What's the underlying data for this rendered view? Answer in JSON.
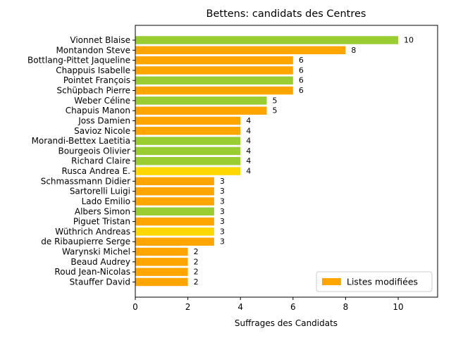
{
  "chart_data": {
    "type": "bar",
    "orientation": "horizontal",
    "title": "Bettens: candidats des Centres",
    "xlabel": "Suffrages des Candidats",
    "ylabel": "",
    "xlim": [
      0,
      11.5
    ],
    "xticks": [
      0,
      2,
      4,
      6,
      8,
      10
    ],
    "grid": false,
    "legend": {
      "label": "Listes modifiées",
      "color": "#ffa500",
      "placement": "lower-right"
    },
    "categories": [
      "Vionnet Blaise",
      "Montandon Steve",
      "Bottlang-Pittet Jaqueline",
      "Chappuis Isabelle",
      "Pointet François",
      "Schüpbach Pierre",
      "Weber Céline",
      "Chapuis Manon",
      "Joss Damien",
      "Savioz Nicole",
      "Morandi-Bettex Laetitia",
      "Bourgeois Olivier",
      "Richard Claire",
      "Rusca Andrea E.",
      "Schmassmann Didier",
      "Sartorelli Luigi",
      "Lado Emilio",
      "Albers Simon",
      "Piguet Tristan",
      "Wüthrich Andreas",
      "de Ribaupierre Serge",
      "Warynski Michel",
      "Beaud Audrey",
      "Roud Jean-Nicolas",
      "Stauffer David"
    ],
    "values": [
      10,
      8,
      6,
      6,
      6,
      6,
      5,
      5,
      4,
      4,
      4,
      4,
      4,
      4,
      3,
      3,
      3,
      3,
      3,
      3,
      3,
      2,
      2,
      2,
      2
    ],
    "colors": [
      "#9acd32",
      "#ffa500",
      "#ffa500",
      "#ffa500",
      "#9acd32",
      "#ffa500",
      "#9acd32",
      "#ffa500",
      "#ffa500",
      "#ffa500",
      "#9acd32",
      "#9acd32",
      "#9acd32",
      "#ffd700",
      "#ffa500",
      "#ffa500",
      "#ffa500",
      "#9acd32",
      "#ffa500",
      "#ffd700",
      "#ffa500",
      "#ffa500",
      "#ffa500",
      "#ffa500",
      "#ffa500"
    ]
  }
}
